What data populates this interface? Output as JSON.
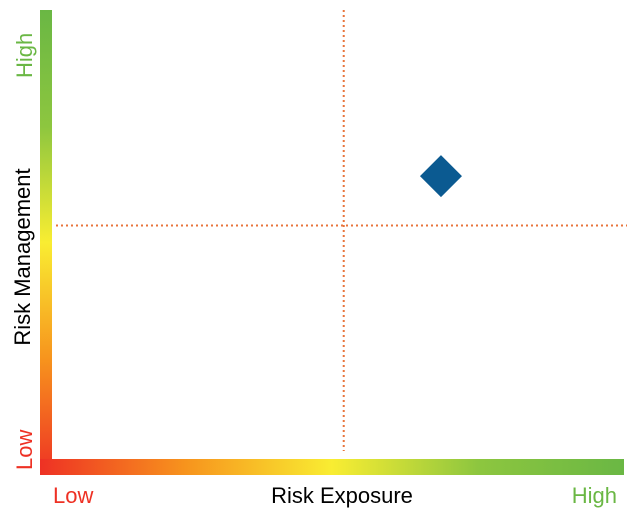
{
  "chart_data": {
    "type": "scatter",
    "xlabel": "Risk Exposure",
    "ylabel": "Risk Management",
    "x_axis": {
      "low_label": "Low",
      "high_label": "High",
      "range": [
        0,
        1
      ],
      "gradient_colors": [
        "#ee3124",
        "#f7941d",
        "#f9ed32",
        "#8dc63f",
        "#6ab744"
      ]
    },
    "y_axis": {
      "low_label": "Low",
      "high_label": "High",
      "range": [
        0,
        1
      ],
      "gradient_colors": [
        "#ee3124",
        "#f7941d",
        "#f9ed32",
        "#8dc63f",
        "#6ab744"
      ]
    },
    "quadrant_dividers": {
      "x": 0.51,
      "y": 0.52,
      "color": "#e8743b",
      "style": "dotted"
    },
    "points": [
      {
        "x": 0.68,
        "y": 0.63,
        "marker": "diamond",
        "color": "#0b5a91"
      }
    ],
    "grid": false,
    "legend": "none",
    "colors": {
      "low_label": "#ee3124",
      "high_label": "#6ab744",
      "axis_title": "#000000"
    }
  }
}
